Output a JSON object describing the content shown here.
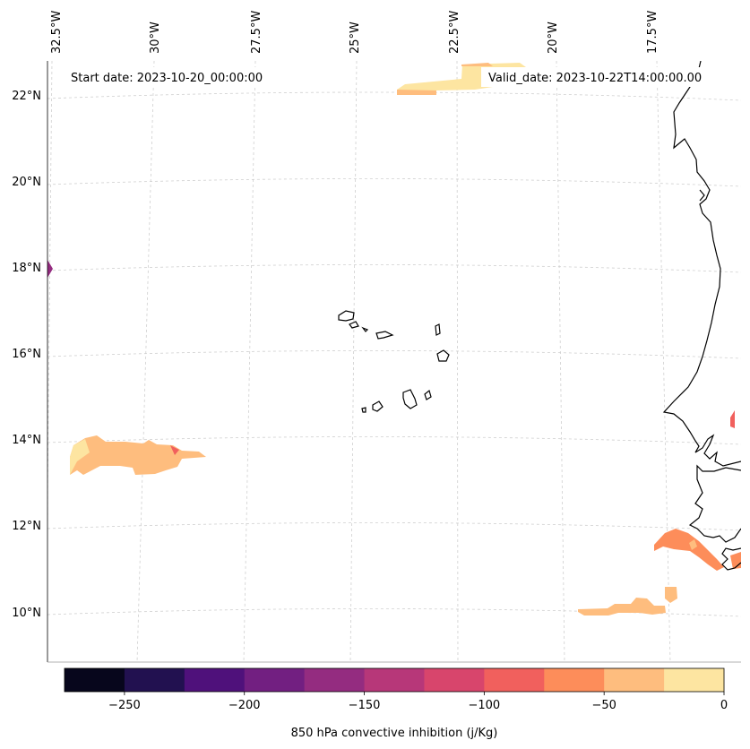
{
  "map": {
    "start_date_label": "Start date: 2023-10-20_00:00:00",
    "valid_date_label": "Valid_date: 2023-10-22T14:00:00.00",
    "longitude_labels": [
      "32.5°W",
      "30°W",
      "27.5°W",
      "25°W",
      "22.5°W",
      "20°W",
      "17.5°W"
    ],
    "latitude_labels": [
      "22°N",
      "20°N",
      "18°N",
      "16°N",
      "14°N",
      "12°N",
      "10°N"
    ]
  },
  "colorbar": {
    "title": "850 hPa convective inhibition (j/Kg)",
    "range": [
      -275,
      0
    ],
    "tick_labels": [
      "−250",
      "−200",
      "−150",
      "−100",
      "−50",
      "0"
    ],
    "tick_values": [
      -250,
      -200,
      -150,
      -100,
      -50,
      0
    ],
    "colors": [
      "#07061c",
      "#221150",
      "#4f117b",
      "#721f81",
      "#942c80",
      "#b73779",
      "#d8456c",
      "#f1605d",
      "#fd8d5a",
      "#febd7e",
      "#fde5a1"
    ]
  },
  "colors": {
    "light_yellow": "#fde5a1",
    "light_orange": "#febd7e",
    "orange": "#fd8d5a",
    "salmon": "#f1605d",
    "magenta": "#942c80"
  }
}
